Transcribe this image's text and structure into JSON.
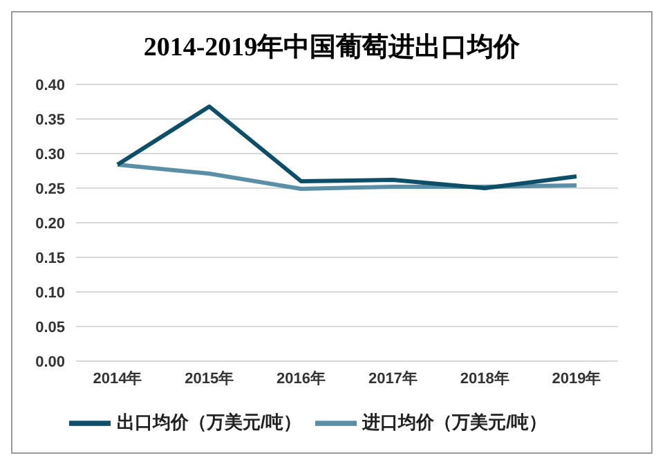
{
  "chart_data": {
    "type": "line",
    "title": "2014-2019年中国葡萄进出口均价",
    "categories": [
      "2014年",
      "2015年",
      "2016年",
      "2017年",
      "2018年",
      "2019年"
    ],
    "series": [
      {
        "name": "进口均价（万美元/吨）",
        "color": "#5b8fa8",
        "values": [
          0.284,
          0.271,
          0.249,
          0.252,
          0.252,
          0.254
        ]
      },
      {
        "name": "出口均价（万美元/吨）",
        "color": "#0d4f68",
        "values": [
          0.284,
          0.368,
          0.26,
          0.262,
          0.25,
          0.267
        ]
      }
    ],
    "ylim": [
      0,
      0.4
    ],
    "yticks": [
      {
        "value": 0,
        "label": "0.00"
      },
      {
        "value": 0.05,
        "label": "0.05"
      },
      {
        "value": 0.1,
        "label": "0.10"
      },
      {
        "value": 0.15,
        "label": "0.15"
      },
      {
        "value": 0.2,
        "label": "0.20"
      },
      {
        "value": 0.25,
        "label": "0.25"
      },
      {
        "value": 0.3,
        "label": "0.30"
      },
      {
        "value": 0.35,
        "label": "0.35"
      },
      {
        "value": 0.4,
        "label": "0.40"
      }
    ],
    "grid": "y",
    "legend": "bottom",
    "marker": "none",
    "line_style": "solid"
  }
}
